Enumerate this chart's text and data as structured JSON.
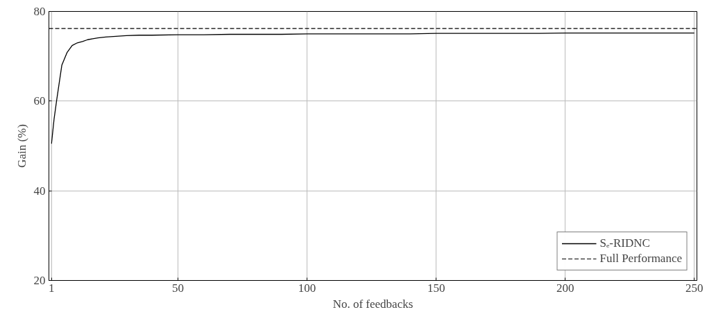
{
  "chart_data": {
    "type": "line",
    "xlabel": "No. of feedbacks",
    "ylabel": "Gain (%)",
    "xlim": [
      0,
      251
    ],
    "ylim": [
      20,
      80
    ],
    "xticks": [
      1,
      50,
      100,
      150,
      200,
      250
    ],
    "yticks": [
      20,
      40,
      60,
      80
    ],
    "grid": true,
    "legend": "bottom right",
    "line_style": "solid",
    "series": [
      {
        "name": "Sₑ-RIDNC",
        "color": "#000000",
        "x": [
          1,
          2,
          3,
          5,
          7,
          9,
          11,
          13,
          15,
          17,
          19,
          22,
          25,
          30,
          35,
          40,
          50,
          60,
          70,
          80,
          90,
          100,
          110,
          120,
          130,
          140,
          150,
          160,
          170,
          180,
          190,
          200,
          210,
          220,
          230,
          240,
          250
        ],
        "values": [
          50.5,
          56,
          60.2,
          68,
          70.8,
          72.4,
          73,
          73.3,
          73.7,
          73.9,
          74.1,
          74.3,
          74.4,
          74.6,
          74.7,
          74.7,
          74.8,
          74.8,
          74.9,
          74.9,
          74.9,
          75.0,
          75.0,
          75.0,
          75.0,
          75.0,
          75.1,
          75.1,
          75.1,
          75.1,
          75.1,
          75.2,
          75.2,
          75.2,
          75.2,
          75.2,
          75.2
        ]
      }
    ],
    "ref_lines": [
      {
        "axis": "y",
        "value": 76.2,
        "label": "Full Performance",
        "color": "#000000",
        "line_style": "dashed"
      }
    ]
  }
}
